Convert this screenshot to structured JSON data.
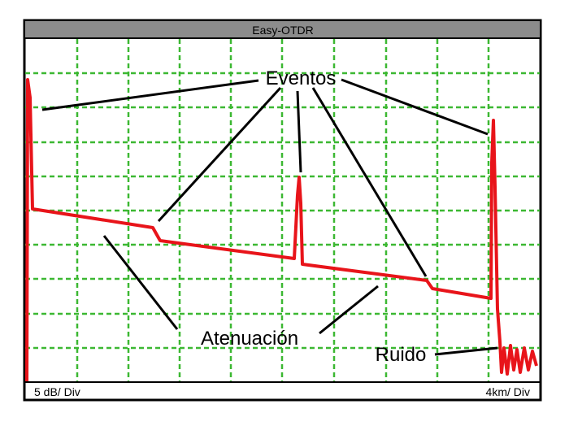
{
  "header": {
    "title": "Easy-OTDR"
  },
  "annotations": {
    "events": "Eventos",
    "attenuation": "Atenuación",
    "noise": "Ruido"
  },
  "footer": {
    "left": "5 dB/ Div",
    "right": "4km/ Div"
  }
}
